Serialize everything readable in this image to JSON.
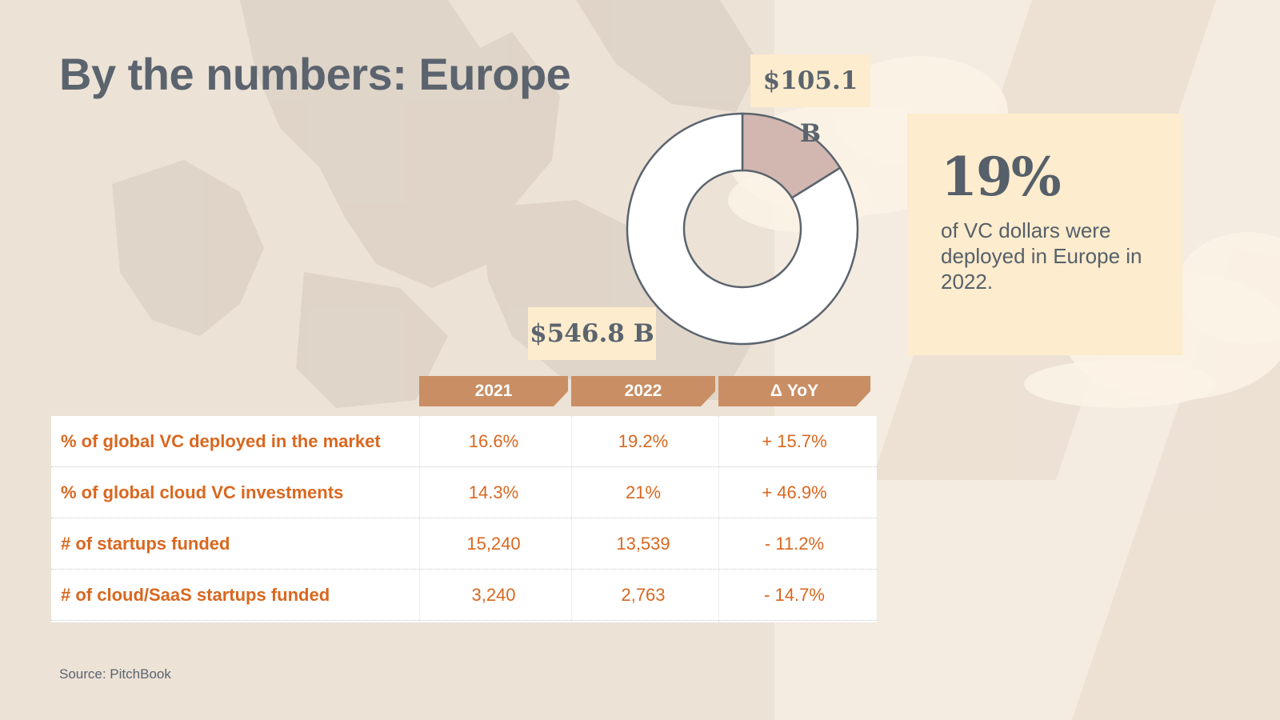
{
  "title": "By the numbers: Europe",
  "chart_data": {
    "type": "pie",
    "donut": true,
    "slices": [
      {
        "label": "$105.1 B",
        "value": 105.1,
        "color": "#d2b7b0"
      },
      {
        "label": "$546.8 B",
        "value": 546.8,
        "color": "#ffffff"
      }
    ]
  },
  "callout": {
    "percent": "19%",
    "description": "of VC dollars were deployed in Europe in 2022."
  },
  "table": {
    "headers": [
      "2021",
      "2022",
      "Δ YoY"
    ],
    "rows": [
      {
        "label": "% of global VC deployed in the market",
        "v2021": "16.6%",
        "v2022": "19.2%",
        "yoy": "+ 15.7%"
      },
      {
        "label": "% of global cloud VC investments",
        "v2021": "14.3%",
        "v2022": "21%",
        "yoy": "+ 46.9%"
      },
      {
        "label": "# of startups funded",
        "v2021": "15,240",
        "v2022": "13,539",
        "yoy": "- 11.2%"
      },
      {
        "label": "# of cloud/SaaS startups funded",
        "v2021": "3,240",
        "v2022": "2,763",
        "yoy": "- 14.7%"
      }
    ]
  },
  "source": "Source: PitchBook",
  "colors": {
    "accent": "#d9671f",
    "header_bg": "#c98e63",
    "highlight_bg": "#fdeccd",
    "text_dark": "#5b646e"
  }
}
